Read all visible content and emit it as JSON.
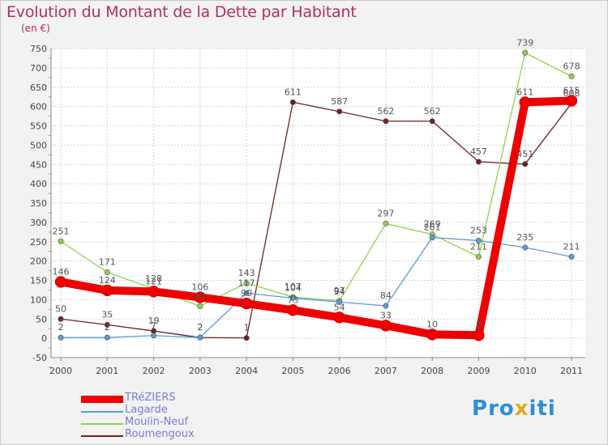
{
  "header": {
    "title": "Evolution du Montant de la Dette par Habitant",
    "subtitle": "(en €)"
  },
  "brand": {
    "letters": [
      "P",
      "r",
      "o",
      "x",
      "i",
      "t",
      "i"
    ],
    "colors": [
      "#2a8fd6",
      "#2a8fd6",
      "#2a8fd6",
      "#e2a91b",
      "#2a8fd6",
      "#2a8fd6",
      "#2a8fd6"
    ]
  },
  "chart_data": {
    "type": "line",
    "title": "Evolution du Montant de la Dette par Habitant",
    "ylabel": "(en €)",
    "xlabel": "",
    "ylim": [
      -50,
      750
    ],
    "yticks": [
      -50,
      0,
      50,
      100,
      150,
      200,
      250,
      300,
      350,
      400,
      450,
      500,
      550,
      600,
      650,
      700,
      750
    ],
    "categories": [
      "2000",
      "2001",
      "2002",
      "2003",
      "2004",
      "2005",
      "2006",
      "2007",
      "2008",
      "2009",
      "2010",
      "2011"
    ],
    "grid": true,
    "legend_position": "bottom-left",
    "series": [
      {
        "name": "TRéZIERS",
        "color": "#ee0000",
        "values": [
          146,
          124,
          121,
          106,
          90,
          73,
          54,
          33,
          10,
          8,
          611,
          615
        ]
      },
      {
        "name": "Lagarde",
        "color": "#5b9bd5",
        "values": [
          2,
          2,
          7,
          2,
          117,
          104,
          94,
          84,
          261,
          253,
          235,
          211
        ]
      },
      {
        "name": "Moulin-Neuf",
        "color": "#92d050",
        "values": [
          251,
          171,
          128,
          83,
          143,
          107,
          97,
          297,
          269,
          211,
          739,
          678
        ]
      },
      {
        "name": "Roumengoux",
        "color": "#722020",
        "values": [
          50,
          35,
          19,
          2,
          1,
          611,
          587,
          562,
          562,
          457,
          451,
          608
        ]
      }
    ]
  }
}
